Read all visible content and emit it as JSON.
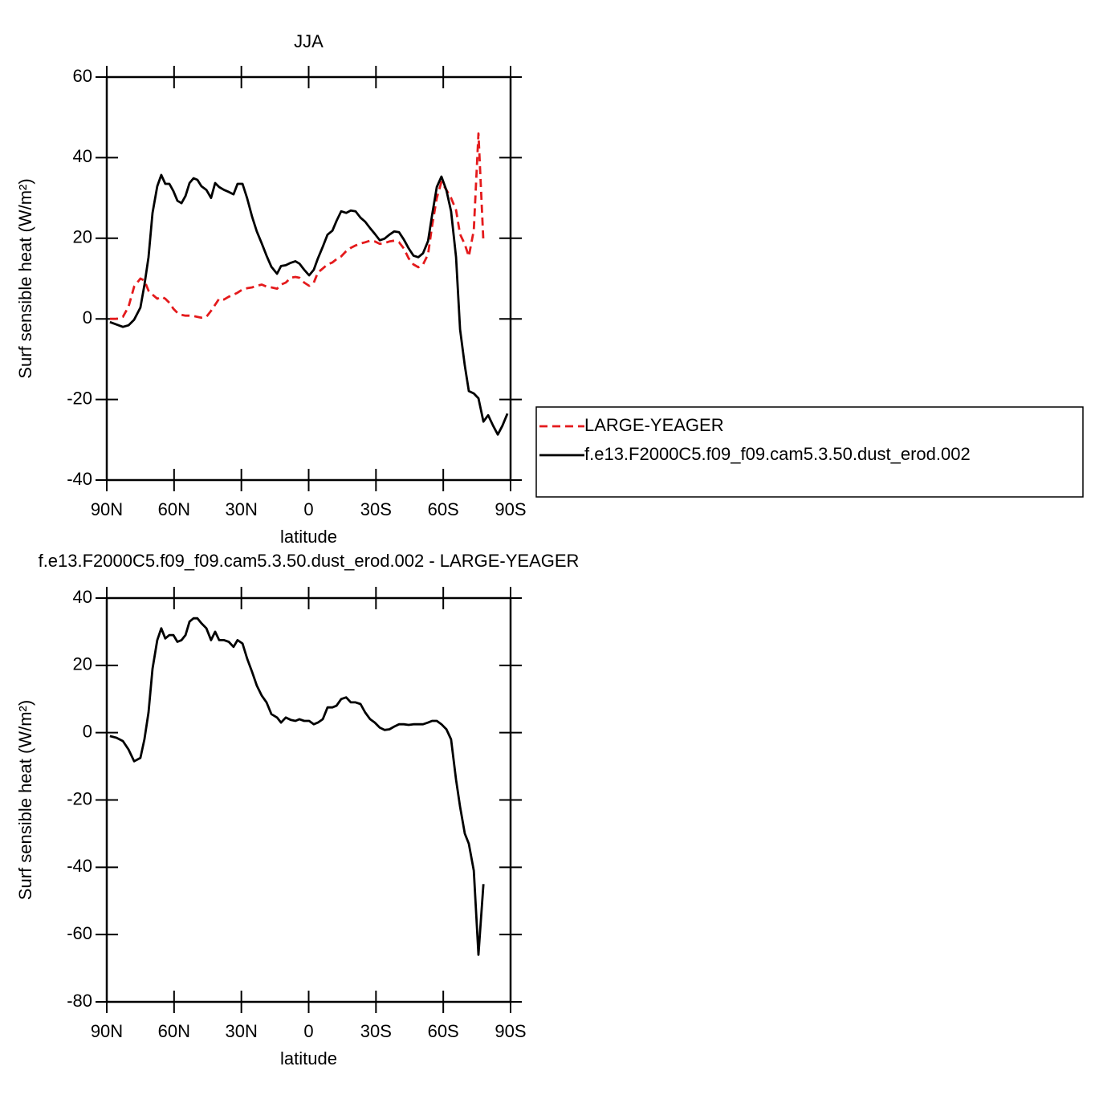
{
  "chart_data": [
    {
      "type": "line",
      "title": "JJA",
      "xlabel": "latitude",
      "ylabel": "Surf sensible heat (W/m²)",
      "x": [
        88.6,
        85.7,
        82.8,
        80.3,
        77.8,
        75.0,
        73.2,
        71.4,
        69.6,
        67.5,
        65.7,
        63.9,
        62.1,
        60.3,
        58.5,
        56.7,
        54.9,
        53.1,
        51.3,
        49.6,
        47.8,
        45.6,
        43.5,
        41.7,
        39.9,
        37.7,
        35.6,
        33.5,
        31.7,
        29.5,
        27.4,
        25.2,
        23.1,
        20.9,
        18.8,
        16.6,
        14.1,
        12.3,
        10.2,
        8.0,
        5.9,
        4.1,
        2.0,
        -0.2,
        -2.3,
        -4.1,
        -6.3,
        -8.4,
        -10.6,
        -12.4,
        -14.5,
        -16.7,
        -18.8,
        -20.9,
        -23.1,
        -25.2,
        -27.4,
        -29.5,
        -31.7,
        -33.8,
        -36.0,
        -38.1,
        -40.3,
        -42.4,
        -44.6,
        -46.7,
        -48.9,
        -51.0,
        -53.2,
        -55.0,
        -57.1,
        -59.2,
        -61.4,
        -63.5,
        -65.7,
        -67.5,
        -69.6,
        -71.4,
        -73.6,
        -75.7,
        -77.9,
        -80.0,
        -82.2,
        -84.3,
        -86.4,
        -88.6
      ],
      "series": [
        {
          "name": "LARGE-YEAGER",
          "color": "#e41a1c",
          "dash": true,
          "values": [
            0,
            0,
            0.5,
            3,
            8,
            10,
            9.5,
            7,
            6,
            5,
            5.5,
            5,
            4,
            2.5,
            1.5,
            1,
            0.8,
            0.8,
            0.7,
            0.5,
            0.3,
            0.5,
            2,
            3.5,
            5,
            4.8,
            5.5,
            6,
            6.5,
            7.3,
            7.6,
            7.8,
            8.2,
            8.5,
            8,
            7.8,
            7.5,
            8.5,
            9,
            10.2,
            10.4,
            10.2,
            9,
            8.2,
            9,
            11.5,
            12.5,
            13.5,
            14,
            14.8,
            15.5,
            16.8,
            17.6,
            18.2,
            18.7,
            19,
            19.4,
            19.2,
            18.6,
            18.8,
            19.2,
            19.4,
            19,
            17.5,
            15,
            13.5,
            12.8,
            13.5,
            16,
            23,
            30,
            34,
            32,
            30,
            27,
            21,
            18.5,
            15.5,
            22,
            46,
            19,
            null,
            null,
            null,
            null,
            null
          ]
        },
        {
          "name": "f.e13.F2000C5.f09_f09.cam5.3.50.dust_erod.002",
          "color": "#000000",
          "dash": false,
          "values": [
            -0.8,
            -1.4,
            -2,
            -1.6,
            -0.2,
            2.8,
            8.4,
            15.3,
            26.3,
            32.9,
            35.7,
            33.5,
            33.5,
            31.7,
            29.3,
            28.7,
            30.5,
            33.7,
            34.9,
            34.5,
            32.9,
            32,
            30,
            33.7,
            32.7,
            32,
            31.5,
            30.9,
            33.5,
            33.5,
            29.9,
            25.3,
            21.7,
            18.7,
            15.7,
            12.9,
            11.2,
            13.1,
            13.3,
            13.9,
            14.3,
            13.7,
            12.2,
            10.8,
            12.2,
            15,
            17.9,
            20.9,
            21.9,
            24.3,
            26.7,
            26.3,
            26.9,
            26.7,
            25.1,
            24.1,
            22.5,
            21.1,
            19.5,
            19.9,
            20.9,
            21.7,
            21.5,
            19.7,
            17.5,
            15.7,
            15.3,
            16.3,
            19.3,
            25.7,
            32.7,
            35.3,
            31.9,
            26.7,
            15.3,
            -2.6,
            -11.6,
            -17.9,
            -18.5,
            -19.7,
            -25.5,
            -23.9,
            -26.5,
            -28.7,
            -26.5,
            -23.5
          ]
        }
      ],
      "xlim": [
        90,
        -90
      ],
      "xticks": [
        {
          "value": 90,
          "label": "90N"
        },
        {
          "value": 60,
          "label": "60N"
        },
        {
          "value": 30,
          "label": "30N"
        },
        0,
        {
          "value": -30,
          "label": "30S"
        },
        {
          "value": -60,
          "label": "60S"
        },
        {
          "value": -90,
          "label": "90S"
        }
      ],
      "ylim": [
        -40,
        60
      ],
      "yticks": [
        60,
        40,
        20,
        0,
        -20,
        -40
      ],
      "legend": "right"
    },
    {
      "type": "line",
      "title": "f.e13.F2000C5.f09_f09.cam5.3.50.dust_erod.002 - LARGE-YEAGER",
      "xlabel": "latitude",
      "ylabel": "Surf sensible heat (W/m²)",
      "x": [
        88.6,
        85.7,
        82.8,
        80.3,
        77.8,
        75.0,
        73.2,
        71.4,
        69.6,
        67.5,
        65.7,
        63.9,
        62.1,
        60.3,
        58.5,
        56.7,
        54.9,
        53.1,
        51.3,
        49.6,
        47.8,
        45.6,
        43.5,
        41.7,
        39.9,
        37.7,
        35.6,
        33.5,
        31.7,
        29.5,
        27.4,
        25.2,
        23.1,
        20.9,
        18.8,
        16.6,
        14.1,
        12.3,
        10.2,
        8.0,
        5.9,
        4.1,
        2.0,
        -0.2,
        -2.3,
        -4.1,
        -6.3,
        -8.4,
        -10.6,
        -12.4,
        -14.5,
        -16.7,
        -18.8,
        -20.9,
        -23.1,
        -25.2,
        -27.4,
        -29.5,
        -31.7,
        -33.8,
        -36.0,
        -38.1,
        -40.3,
        -42.4,
        -44.6,
        -46.7,
        -48.9,
        -51.0,
        -53.2,
        -55.0,
        -57.1,
        -59.2,
        -61.4,
        -63.5,
        -65.7,
        -67.5,
        -69.6,
        -71.4,
        -73.6,
        -75.7,
        -77.9,
        -80.0,
        -82.2,
        -84.3,
        -86.4,
        -88.6
      ],
      "series": [
        {
          "color": "#000000",
          "dash": false,
          "values": [
            -1,
            -1.5,
            -2.5,
            -5,
            -8.5,
            -7.5,
            -2,
            6,
            19,
            27.5,
            31,
            28,
            29,
            29,
            27,
            27.5,
            29,
            33,
            34,
            34,
            32.5,
            31,
            27.5,
            30,
            27.5,
            27.5,
            27,
            25.5,
            27.5,
            26.5,
            22,
            18,
            14,
            11,
            9,
            5.5,
            4.5,
            3,
            4.5,
            3.8,
            3.5,
            4,
            3.5,
            3.5,
            2.5,
            3,
            4,
            7.5,
            7.5,
            8,
            10,
            10.5,
            9,
            9,
            8.5,
            6,
            4,
            3,
            1.5,
            0.8,
            1,
            1.8,
            2.5,
            2.5,
            2.3,
            2.5,
            2.5,
            2.5,
            3,
            3.5,
            3.5,
            2.5,
            1,
            -2,
            -14,
            -22,
            -30,
            -33,
            -41,
            -66,
            -45,
            null,
            null,
            null,
            null,
            null
          ]
        }
      ],
      "xlim": [
        90,
        -90
      ],
      "xticks": [
        {
          "value": 90,
          "label": "90N"
        },
        {
          "value": 60,
          "label": "60N"
        },
        {
          "value": 30,
          "label": "30N"
        },
        0,
        {
          "value": -30,
          "label": "30S"
        },
        {
          "value": -60,
          "label": "60S"
        },
        {
          "value": -90,
          "label": "90S"
        }
      ],
      "ylim": [
        -80,
        40
      ],
      "yticks": [
        40,
        20,
        0,
        -20,
        -40,
        -60,
        -80
      ]
    }
  ]
}
